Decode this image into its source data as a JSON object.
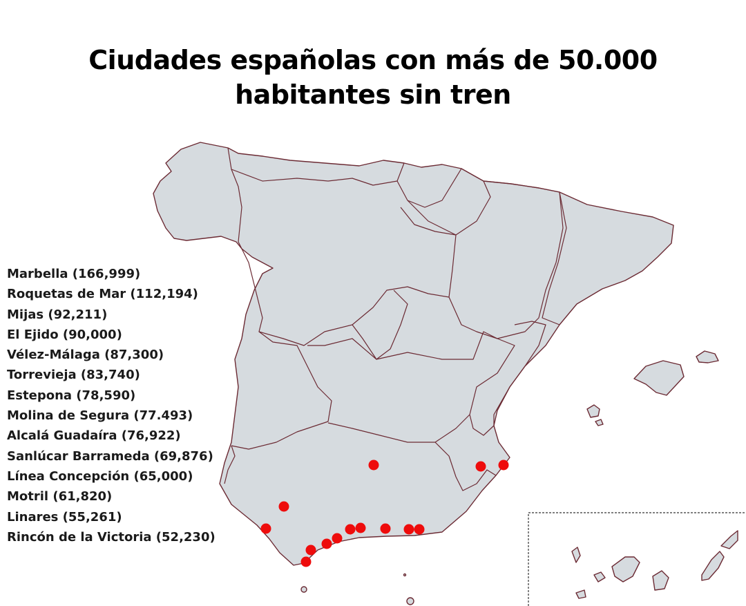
{
  "title": {
    "line1": "Ciudades españolas con más de 50.000",
    "line2": "habitantes sin tren"
  },
  "colors": {
    "land": "#d6dbdf",
    "border": "#6b2a33",
    "city_marker": "#ee0c0c",
    "text": "#1a1a1a"
  },
  "legend": [
    "Marbella (166,999)",
    "Roquetas de Mar (112,194)",
    "Mijas (92,211)",
    "El Ejido (90,000)",
    "Vélez-Málaga (87,300)",
    "Torrevieja (83,740)",
    "Estepona (78,590)",
    "Molina de Segura (77.493)",
    "Alcalá Guadaíra (76,922)",
    "Sanlúcar Barrameda (69,876)",
    "Línea Concepción (65,000)",
    "Motril (61,820)",
    "Linares (55,261)",
    "Rincón de la Victoria (52,230)"
  ]
}
